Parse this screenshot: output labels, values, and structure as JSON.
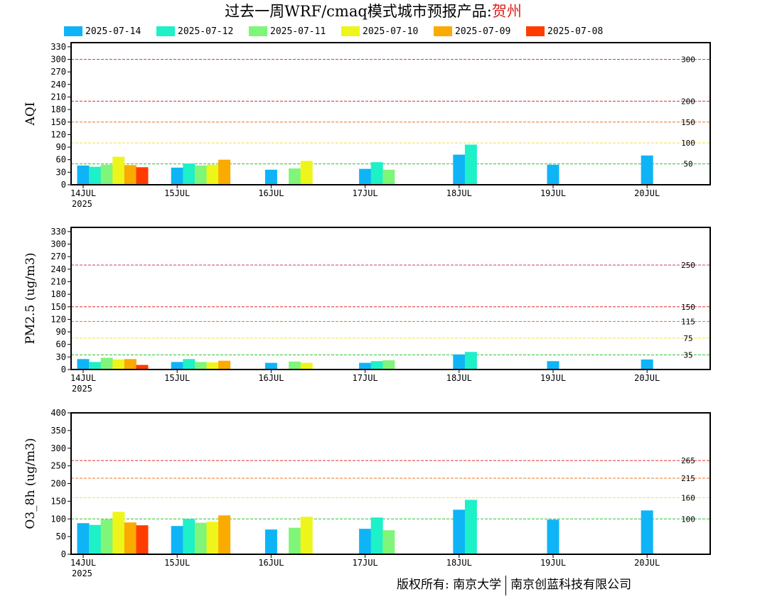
{
  "title": {
    "prefix": "过去一周WRF/cmaq模式城市预报产品:",
    "location": "贺州"
  },
  "legend": [
    {
      "label": "2025-07-14",
      "color": "#0fb4f7"
    },
    {
      "label": "2025-07-12",
      "color": "#1ef0c8"
    },
    {
      "label": "2025-07-11",
      "color": "#7ff57a"
    },
    {
      "label": "2025-07-10",
      "color": "#eef51a"
    },
    {
      "label": "2025-07-09",
      "color": "#fbaa00"
    },
    {
      "label": "2025-07-08",
      "color": "#ff3c00"
    }
  ],
  "footer": {
    "left": "版权所有: 南京大学",
    "right": "南京创蓝科技有限公司"
  },
  "chart_data": [
    {
      "type": "bar",
      "ylabel": "AQI",
      "ylim": [
        0,
        340
      ],
      "yticks": [
        0,
        30,
        60,
        90,
        120,
        150,
        180,
        210,
        240,
        270,
        300,
        330
      ],
      "categories": [
        "14JUL",
        "15JUL",
        "16JUL",
        "17JUL",
        "18JUL",
        "19JUL",
        "20JUL"
      ],
      "year_label": "2025",
      "thresholds": [
        {
          "value": 300,
          "label": "300",
          "color": "#c83c64"
        },
        {
          "value": 200,
          "label": "200",
          "color": "#dc3030"
        },
        {
          "value": 150,
          "label": "150",
          "color": "#f07020"
        },
        {
          "value": 100,
          "label": "100",
          "color": "#f0e040"
        },
        {
          "value": 50,
          "label": "50",
          "color": "#30c030"
        }
      ],
      "series": [
        {
          "name": "2025-07-14",
          "values": [
            46,
            41,
            36,
            38,
            72,
            48,
            70
          ]
        },
        {
          "name": "2025-07-12",
          "values": [
            43,
            51,
            null,
            54,
            96,
            null,
            null
          ]
        },
        {
          "name": "2025-07-11",
          "values": [
            48,
            46,
            39,
            36,
            null,
            null,
            null
          ]
        },
        {
          "name": "2025-07-10",
          "values": [
            67,
            48,
            57,
            null,
            null,
            null,
            null
          ]
        },
        {
          "name": "2025-07-09",
          "values": [
            47,
            60,
            null,
            null,
            null,
            null,
            null
          ]
        },
        {
          "name": "2025-07-08",
          "values": [
            42,
            null,
            null,
            null,
            null,
            null,
            null
          ]
        }
      ]
    },
    {
      "type": "bar",
      "ylabel": "PM2.5 (ug/m3)",
      "ylim": [
        0,
        340
      ],
      "yticks": [
        0,
        30,
        60,
        90,
        120,
        150,
        180,
        210,
        240,
        270,
        300,
        330
      ],
      "categories": [
        "14JUL",
        "15JUL",
        "16JUL",
        "17JUL",
        "18JUL",
        "19JUL",
        "20JUL"
      ],
      "year_label": "2025",
      "thresholds": [
        {
          "value": 250,
          "label": "250",
          "color": "#c83c64"
        },
        {
          "value": 150,
          "label": "150",
          "color": "#dc3030"
        },
        {
          "value": 115,
          "label": "115",
          "color": "#f07020"
        },
        {
          "value": 75,
          "label": "75",
          "color": "#f0e040"
        },
        {
          "value": 35,
          "label": "35",
          "color": "#30c030"
        }
      ],
      "series": [
        {
          "name": "2025-07-14",
          "values": [
            25,
            18,
            16,
            16,
            36,
            20,
            24
          ]
        },
        {
          "name": "2025-07-12",
          "values": [
            18,
            25,
            null,
            20,
            42,
            null,
            null
          ]
        },
        {
          "name": "2025-07-11",
          "values": [
            28,
            18,
            19,
            22,
            null,
            null,
            null
          ]
        },
        {
          "name": "2025-07-10",
          "values": [
            24,
            17,
            16,
            null,
            null,
            null,
            null
          ]
        },
        {
          "name": "2025-07-09",
          "values": [
            25,
            21,
            null,
            null,
            null,
            null,
            null
          ]
        },
        {
          "name": "2025-07-08",
          "values": [
            11,
            null,
            null,
            null,
            null,
            null,
            null
          ]
        }
      ]
    },
    {
      "type": "bar",
      "ylabel": "O3_8h (ug/m3)",
      "ylim": [
        0,
        400
      ],
      "yticks": [
        0,
        50,
        100,
        150,
        200,
        250,
        300,
        350,
        400
      ],
      "categories": [
        "14JUL",
        "15JUL",
        "16JUL",
        "17JUL",
        "18JUL",
        "19JUL",
        "20JUL"
      ],
      "year_label": "2025",
      "thresholds": [
        {
          "value": 265,
          "label": "265",
          "color": "#dc3030"
        },
        {
          "value": 215,
          "label": "215",
          "color": "#f07020"
        },
        {
          "value": 160,
          "label": "160",
          "color": "#f0e040"
        },
        {
          "value": 100,
          "label": "100",
          "color": "#30c030"
        }
      ],
      "series": [
        {
          "name": "2025-07-14",
          "values": [
            88,
            80,
            70,
            72,
            126,
            98,
            124
          ]
        },
        {
          "name": "2025-07-12",
          "values": [
            83,
            100,
            null,
            104,
            154,
            null,
            null
          ]
        },
        {
          "name": "2025-07-11",
          "values": [
            99,
            89,
            75,
            68,
            null,
            null,
            null
          ]
        },
        {
          "name": "2025-07-10",
          "values": [
            120,
            92,
            106,
            null,
            null,
            null,
            null
          ]
        },
        {
          "name": "2025-07-09",
          "values": [
            90,
            110,
            null,
            null,
            null,
            null,
            null
          ]
        },
        {
          "name": "2025-07-08",
          "values": [
            82,
            null,
            null,
            null,
            null,
            null,
            null
          ]
        }
      ]
    }
  ]
}
